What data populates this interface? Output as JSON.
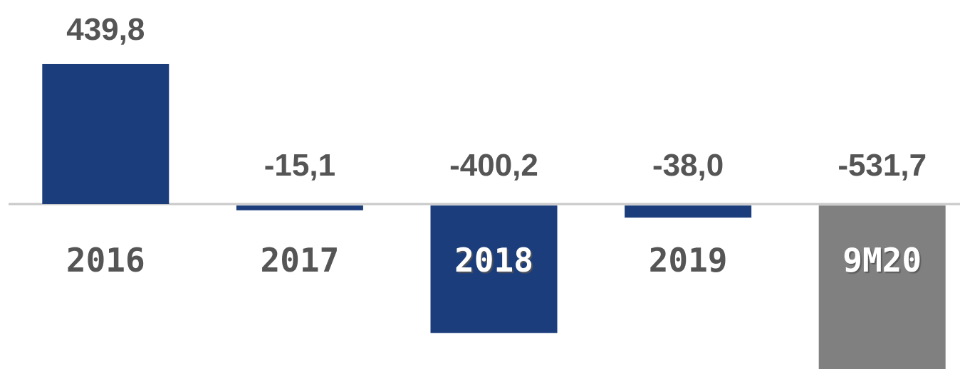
{
  "chart_data": {
    "type": "bar",
    "categories": [
      "2016",
      "2017",
      "2018",
      "2019",
      "9M20"
    ],
    "values": [
      439.8,
      -15.1,
      -400.2,
      -38.0,
      -531.7
    ],
    "value_labels": [
      "439,8",
      "-15,1",
      "-400,2",
      "-38,0",
      "-531,7"
    ],
    "colors": [
      "#1b3d7c",
      "#1b3d7c",
      "#1b3d7c",
      "#1b3d7c",
      "#808080"
    ]
  }
}
